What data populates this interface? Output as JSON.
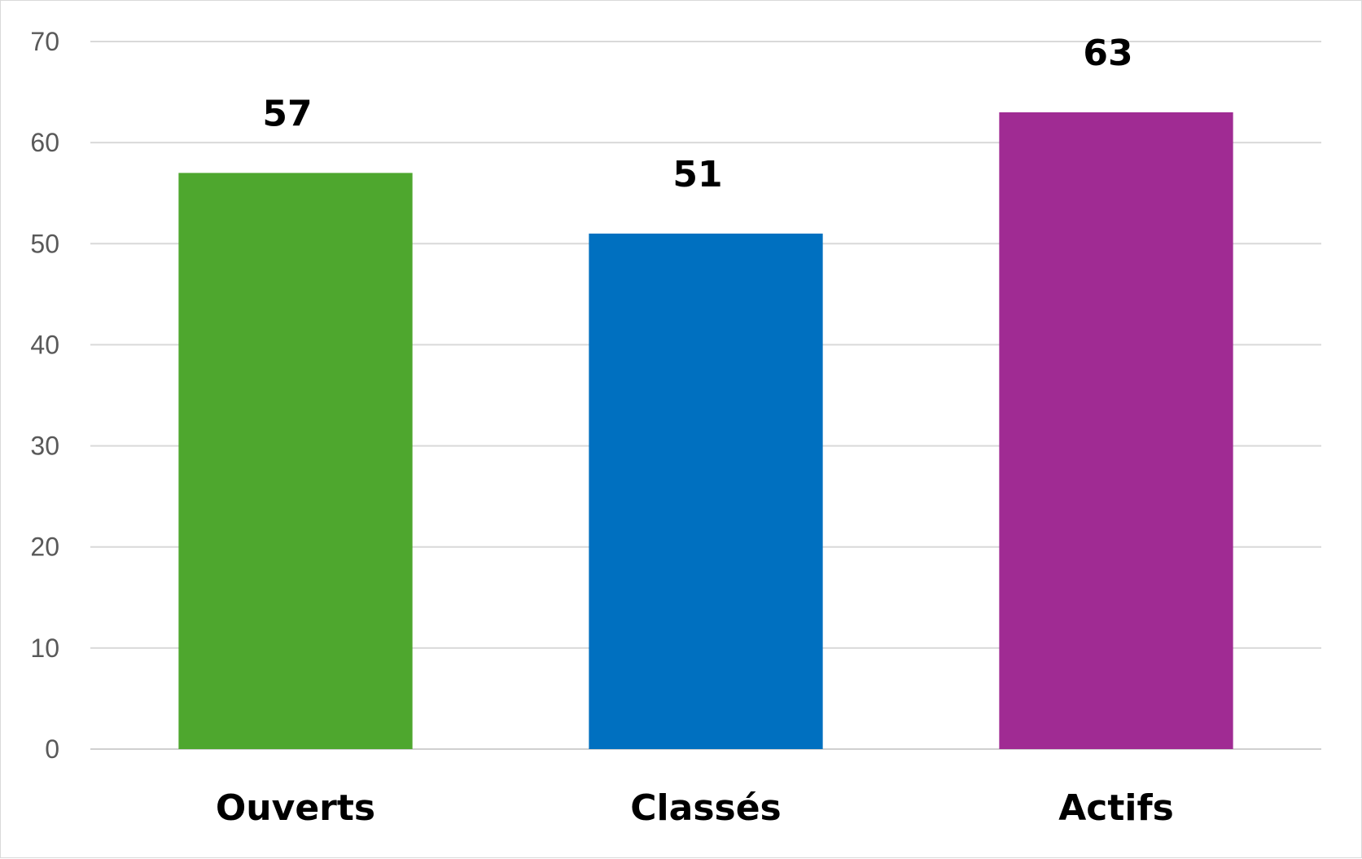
{
  "chart_data": {
    "type": "bar",
    "categories": [
      "Ouverts",
      "Classés",
      "Actifs"
    ],
    "values": [
      57,
      51,
      63
    ],
    "colors": [
      "#4ea72e",
      "#0070c0",
      "#a02b93"
    ],
    "ylim": [
      0,
      70
    ],
    "yticks": [
      "0",
      "10",
      "20",
      "30",
      "40",
      "50",
      "60",
      "70"
    ],
    "grid": true,
    "legend": "none",
    "data_labels": [
      "57",
      "51",
      "63"
    ]
  }
}
